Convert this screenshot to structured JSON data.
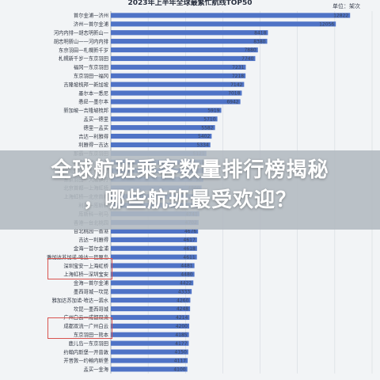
{
  "chart_data": {
    "type": "bar",
    "orientation": "horizontal",
    "title": "2023年上半年全球最繁忙航线TOP50",
    "unit_label": "单位：架次",
    "grid": true,
    "xlim": [
      0,
      14000
    ],
    "categories": [
      "首尔金浦一济州",
      "济州一首尔金浦",
      "河内内排一胡志明新山一",
      "胡志明新山一一河内内排",
      "东京羽田一札幌新千岁",
      "札幌新千岁一东京羽田",
      "福冈一东京羽田",
      "东京羽田一福冈",
      "吉隆坡梳邦一新加坡",
      "墨尔本一悉尼",
      "悉尼一墨尔本",
      "新加坡一吉隆坡梳邦",
      "孟买一德里",
      "德里一孟买",
      "吉达一利雅得",
      "利雅得一吉达",
      "那霸一东京羽田",
      "东京羽田一那霸",
      "大阪伊丹一东京羽田",
      "东京羽田一大阪伊丹",
      "北京首都一上海虹桥",
      "上海虹桥一北京首都",
      "利马一库斯科",
      "库斯科一利马",
      "香港一台北桃园",
      "台北桃园一香港",
      "吉达一利雅得",
      "金海一首尔金浦",
      "雅加达苏加诺-哈达一巴厘岛",
      "深圳宝安一上海虹桥",
      "上海虹桥一深圳宝安",
      "金海一首尔金浦",
      "墨西哥城一坎昆",
      "雅加达苏加诺-哈达一泗水",
      "坎昆一墨西哥城",
      "广州白云一成都双流",
      "成都双流一广州白云",
      "东京羽田一熊本",
      "鹿儿岛一东京羽田",
      "约翰内斯堡一开普敦",
      "开普敦一约翰内斯堡",
      "孟买一金海"
    ],
    "values": [
      12822,
      12056,
      8418,
      8380,
      7880,
      7740,
      7231,
      7218,
      7142,
      7018,
      6942,
      5919,
      5710,
      5582,
      5402,
      5334,
      5121,
      5109,
      4998,
      4952,
      4860,
      4832,
      4810,
      4741,
      4702,
      4676,
      4617,
      4618,
      4611,
      4481,
      4480,
      4422,
      4333,
      4260,
      4248,
      4214,
      4200,
      4185,
      4177,
      4150,
      4117,
      4100
    ],
    "value_labels": [
      "12822",
      "12056",
      "8418",
      "8380",
      "7880",
      "7740",
      "7231",
      "7218",
      "7142",
      "7018",
      "6942",
      "5919",
      "5710",
      "5582",
      "5402",
      "5334",
      "5121",
      "5109",
      "4998",
      "4952",
      "4860",
      "4832",
      "4810",
      "4741",
      "4702",
      "4676",
      "4617",
      "4618",
      "4611",
      "4481",
      "4480",
      "4422",
      "4333",
      "4260",
      "4248",
      "4214",
      "4200",
      "4185",
      "4177",
      "4150",
      "4117",
      "4100"
    ],
    "highlighted_categories": [
      "深圳宝安一上海虹桥",
      "上海虹桥一深圳宝安",
      "广州白云一成都双流",
      "成都双流一广州白云"
    ],
    "colors": {
      "bar": "#4f73c6",
      "highlight": "#d9534f",
      "background": "#f2f4f6"
    }
  },
  "overlay": {
    "headline": "全球航班乘客数量排行榜揭秘\n，哪些航班最受欢迎？"
  }
}
